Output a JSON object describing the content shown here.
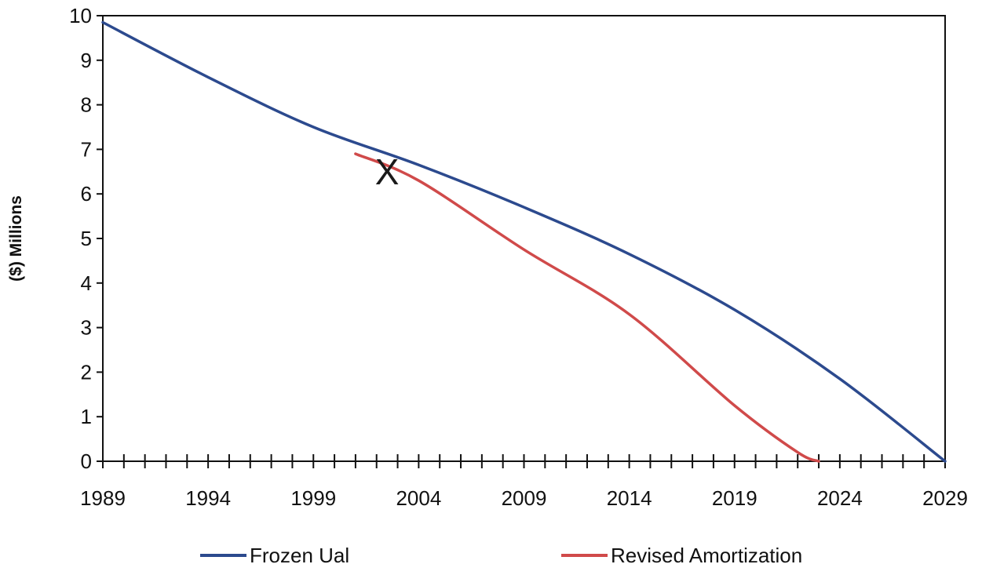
{
  "chart_data": {
    "type": "line",
    "title": "",
    "xlabel": "",
    "ylabel": "($) Millions",
    "xlim": [
      1989,
      2029
    ],
    "ylim": [
      0,
      10
    ],
    "x_ticks": [
      1989,
      1994,
      1999,
      2004,
      2009,
      2014,
      2019,
      2024,
      2029
    ],
    "y_ticks": [
      0,
      1,
      2,
      3,
      4,
      5,
      6,
      7,
      8,
      9,
      10
    ],
    "x_tick_labels": [
      "1989",
      "1994",
      "1999",
      "2004",
      "2009",
      "2014",
      "2019",
      "2024",
      "2029"
    ],
    "y_tick_labels": [
      "0",
      "1",
      "2",
      "3",
      "4",
      "5",
      "6",
      "7",
      "8",
      "9",
      "10"
    ],
    "grid": false,
    "legend_position": "bottom",
    "series": [
      {
        "name": "Frozen Ual",
        "color": "#2c4a8e",
        "x": [
          1989,
          1994,
          1999,
          2004,
          2009,
          2014,
          2019,
          2024,
          2029
        ],
        "y": [
          9.85,
          8.62,
          7.5,
          6.65,
          5.7,
          4.65,
          3.4,
          1.85,
          0.0
        ]
      },
      {
        "name": "Revised Amortization",
        "color": "#d04a4a",
        "x": [
          2001,
          2004,
          2009,
          2014,
          2019,
          2022,
          2023
        ],
        "y": [
          6.9,
          6.3,
          4.75,
          3.3,
          1.25,
          0.2,
          0.0
        ]
      }
    ],
    "annotations": [
      {
        "text": "X",
        "x": 2002.5,
        "y": 6.5
      }
    ]
  }
}
